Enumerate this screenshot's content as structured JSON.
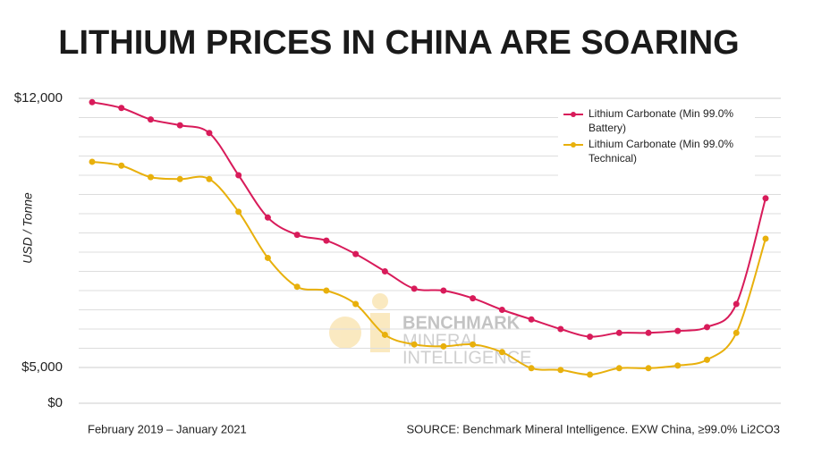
{
  "chart_data": {
    "type": "line",
    "title": "LITHIUM PRICES IN CHINA ARE SOARING",
    "y_label": "USD / Tonne",
    "period": "February 2019 – January 2021",
    "source": "SOURCE: Benchmark Mineral Intelligence. EXW China, ≥99.0% Li2CO3",
    "watermark": [
      "BENCHMARK",
      "MINERAL",
      "INTELLIGENCE"
    ],
    "categories": [
      null,
      null,
      null,
      null,
      null,
      null,
      null,
      null,
      null,
      null,
      null,
      null,
      null,
      null,
      null,
      null,
      null,
      null,
      null,
      null,
      null,
      null,
      null,
      null
    ],
    "series": [
      {
        "name": "Lithium Carbonate (Min 99.0% Battery)",
        "color": "#d81b5a",
        "values": [
          11900,
          11750,
          11450,
          11300,
          11100,
          10000,
          8900,
          8450,
          8300,
          7950,
          7500,
          7050,
          7000,
          6800,
          6500,
          6250,
          6000,
          5800,
          5900,
          5900,
          5950,
          6050,
          6650,
          9400
        ]
      },
      {
        "name": "Lithium Carbonate (Min 99.0% Technical)",
        "color": "#e8b00c",
        "values": [
          10350,
          10250,
          9950,
          9900,
          9900,
          9050,
          7850,
          7100,
          7000,
          6650,
          5850,
          5600,
          5550,
          5600,
          5400,
          4900,
          4650,
          4000,
          4900,
          4900,
          5050,
          5200,
          5900,
          8350
        ]
      }
    ],
    "ylim": [
      0,
      12000
    ],
    "yticks": [
      {
        "value": 0,
        "label": "$0"
      },
      {
        "value": 5000,
        "label": "$5,000"
      },
      {
        "value": 12000,
        "label": "$12,000"
      }
    ],
    "ygrid": [
      5000,
      5500,
      6000,
      6500,
      7000,
      7500,
      8000,
      8500,
      9000,
      9500,
      10000,
      10500,
      11000,
      11500,
      12000
    ],
    "axis_break": true,
    "grid": true,
    "legend": "top-right"
  }
}
